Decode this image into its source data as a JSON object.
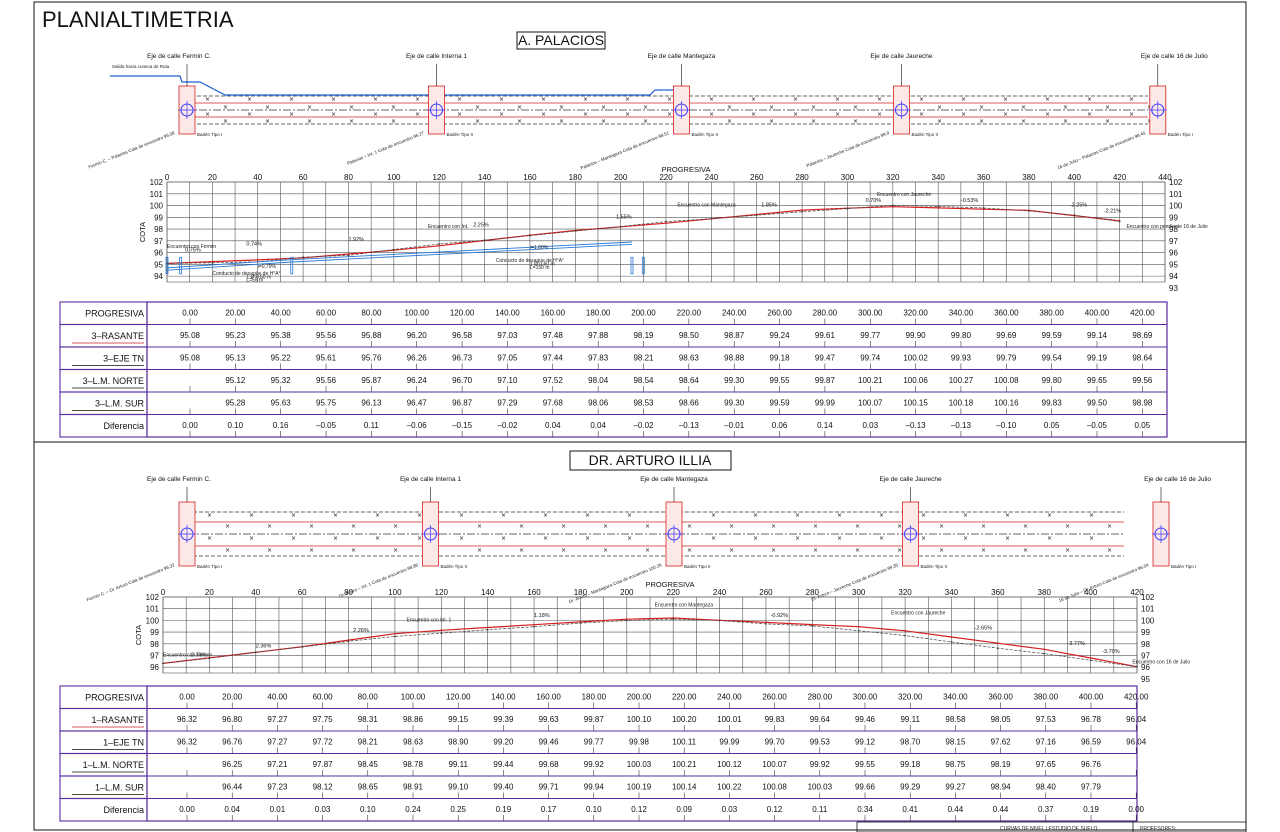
{
  "title": "PLANIALTIMETRIA",
  "footer": {
    "left_fragment": "CURVAS DE NIVEL / ESTUDIO DE SUELO",
    "right_fragment": "PROFESORES:"
  },
  "sections": [
    {
      "id": "palacios",
      "street_title": "A. PALACIOS",
      "intersections": [
        {
          "label": "Eje de calle Fermin C.",
          "prog": 0,
          "cota_label": "Fermin C. – Palacios  Cota de encuentro 95.08"
        },
        {
          "label": "Eje de calle Interna 1",
          "prog": 110,
          "cota_label": "Palacios – Int. 1  Cota de encuentro 96.27"
        },
        {
          "label": "Eje de calle Mantegaza",
          "prog": 218,
          "cota_label": "Palacios – Mantegaza  Cota de encuentro 98.51"
        },
        {
          "label": "Eje de calle Jaureche",
          "prog": 315,
          "cota_label": "Palacios – Jaureche  Cota de encuentro 99.9"
        },
        {
          "label": "Eje de calle 16 de Julio",
          "prog": 428,
          "cota_label": "16 de Julio – Palacios  Cota de encuentro 98.45"
        }
      ],
      "plan_notes": [
        "Salida hacia cuneca de Ruta",
        "Badén Tipo I",
        "Badén Tipo II",
        "Badén Tipo II",
        "Badén Tipo II",
        "Badén Tipo I"
      ],
      "chart_data": {
        "type": "line",
        "xlabel": "PROGRESIVA",
        "ylabel": "COTA",
        "x_ticks": [
          0,
          20,
          40,
          60,
          80,
          100,
          120,
          140,
          160,
          180,
          200,
          220,
          240,
          260,
          280,
          300,
          320,
          340,
          360,
          380,
          400,
          420,
          440
        ],
        "y_ticks": [
          94,
          95,
          96,
          97,
          98,
          99,
          100,
          101,
          102
        ],
        "y_ticks_right": [
          93,
          94,
          95,
          96,
          97,
          98,
          99,
          100,
          101,
          102
        ],
        "xlim": [
          0,
          440
        ],
        "ylim": [
          93.5,
          102
        ],
        "grid": true,
        "series": [
          {
            "name": "3-RASANTE",
            "color": "#d42020",
            "x": [
              0,
              20,
              40,
              60,
              80,
              100,
              120,
              140,
              160,
              180,
              200,
              220,
              240,
              260,
              280,
              300,
              320,
              340,
              360,
              380,
              400,
              420
            ],
            "y": [
              95.08,
              95.23,
              95.38,
              95.56,
              95.88,
              96.2,
              96.58,
              97.03,
              97.48,
              97.88,
              98.19,
              98.5,
              98.87,
              99.24,
              99.61,
              99.77,
              99.9,
              99.8,
              99.69,
              99.59,
              99.14,
              98.69
            ]
          },
          {
            "name": "3-EJE TN",
            "color": "#444444",
            "x": [
              0,
              20,
              40,
              60,
              80,
              100,
              120,
              140,
              160,
              180,
              200,
              220,
              240,
              260,
              280,
              300,
              320,
              340,
              360,
              380,
              400,
              420
            ],
            "y": [
              95.08,
              95.13,
              95.22,
              95.61,
              95.76,
              96.26,
              96.73,
              97.05,
              97.44,
              97.83,
              98.21,
              98.63,
              98.88,
              99.18,
              99.47,
              99.74,
              100.02,
              99.93,
              99.79,
              99.54,
              99.19,
              98.64
            ]
          }
        ],
        "slopes": [
          {
            "x": 8,
            "y": 96.1,
            "label": "0.75%"
          },
          {
            "x": 35,
            "y": 96.6,
            "label": "0.74%"
          },
          {
            "x": 80,
            "y": 97.0,
            "label": "1.92%"
          },
          {
            "x": 135,
            "y": 98.2,
            "label": "2.25%"
          },
          {
            "x": 198,
            "y": 98.9,
            "label": "1.55%"
          },
          {
            "x": 262,
            "y": 99.9,
            "label": "1.85%"
          },
          {
            "x": 308,
            "y": 100.3,
            "label": "0.70%"
          },
          {
            "x": 350,
            "y": 100.3,
            "label": "-0.53%"
          },
          {
            "x": 398,
            "y": 99.9,
            "label": "-2.25%"
          },
          {
            "x": 413,
            "y": 99.4,
            "label": "-2.21%"
          }
        ],
        "notes": [
          {
            "x": 0,
            "y": 96.4,
            "text": "Encuentro con Fermin"
          },
          {
            "x": 115,
            "y": 98.1,
            "text": "Encuentro con Int."
          },
          {
            "x": 225,
            "y": 99.9,
            "text": "Encuentro con Mantegaza"
          },
          {
            "x": 313,
            "y": 100.8,
            "text": "Encuentro con Jaureche"
          },
          {
            "x": 423,
            "y": 98.1,
            "text": "Encuentro con pendiente 16 de Julio"
          },
          {
            "x": 20,
            "y": 94.1,
            "text": "Conducto de desagüe de H°A°"
          },
          {
            "x": 35,
            "y": 93.8,
            "text": "1 Ø 0,60 m"
          },
          {
            "x": 35,
            "y": 93.55,
            "text": "L=55 m"
          },
          {
            "x": 40,
            "y": 94.7,
            "text": "i=0,79%"
          },
          {
            "x": 145,
            "y": 95.2,
            "text": "Conducto de desagüe de H°A°"
          },
          {
            "x": 160,
            "y": 94.9,
            "text": "1 Ø 0,60 m"
          },
          {
            "x": 160,
            "y": 94.6,
            "text": "L=150 m"
          },
          {
            "x": 160,
            "y": 96.3,
            "text": "i=1,00%"
          }
        ]
      },
      "table": {
        "rows": [
          {
            "label": "PROGRESIVA",
            "values": [
              "0.00",
              "20.00",
              "40.00",
              "60.00",
              "80.00",
              "100.00",
              "120.00",
              "140.00",
              "160.00",
              "180.00",
              "200.00",
              "220.00",
              "240.00",
              "260.00",
              "280.00",
              "300.00",
              "320.00",
              "340.00",
              "360.00",
              "380.00",
              "400.00",
              "420.00"
            ]
          },
          {
            "label": "3–RASANTE",
            "values": [
              "95.08",
              "95.23",
              "95.38",
              "95.56",
              "95.88",
              "96.20",
              "96.58",
              "97.03",
              "97.48",
              "97.88",
              "98.19",
              "98.50",
              "98.87",
              "99.24",
              "99.61",
              "99.77",
              "99.90",
              "99.80",
              "99.69",
              "99.59",
              "99.14",
              "98.69"
            ]
          },
          {
            "label": "3–EJE TN",
            "values": [
              "95.08",
              "95.13",
              "95.22",
              "95.61",
              "95.76",
              "96.26",
              "96.73",
              "97.05",
              "97.44",
              "97.83",
              "98.21",
              "98.63",
              "98.88",
              "99.18",
              "99.47",
              "99.74",
              "100.02",
              "99.93",
              "99.79",
              "99.54",
              "99.19",
              "98.64"
            ]
          },
          {
            "label": "3–L.M. NORTE",
            "values": [
              "",
              "95.12",
              "95.32",
              "95.56",
              "95.87",
              "96.24",
              "96.70",
              "97.10",
              "97.52",
              "98.04",
              "98.54",
              "98.64",
              "99.30",
              "99.55",
              "99.87",
              "100.21",
              "100.06",
              "100.27",
              "100.08",
              "99.80",
              "99.65",
              "99.56"
            ]
          },
          {
            "label": "3–L.M. SUR",
            "values": [
              "",
              "95.28",
              "95.63",
              "95.75",
              "96.13",
              "96.47",
              "96.87",
              "97.29",
              "97.68",
              "98.06",
              "98.53",
              "98.66",
              "99.30",
              "99.59",
              "99.99",
              "100.07",
              "100.15",
              "100.18",
              "100.16",
              "99.83",
              "99.50",
              "98.98"
            ]
          },
          {
            "label": "Diferencia",
            "values": [
              "0.00",
              "0.10",
              "0.16",
              "–0.05",
              "0.11",
              "–0.06",
              "–0.15",
              "–0.02",
              "0.04",
              "0.04",
              "–0.02",
              "–0.13",
              "–0.01",
              "0.06",
              "0.14",
              "0.03",
              "–0.13",
              "–0.13",
              "–0.10",
              "0.05",
              "–0.05",
              "0.05"
            ]
          }
        ]
      }
    },
    {
      "id": "illia",
      "street_title": "DR. ARTURO ILLIA",
      "intersections": [
        {
          "label": "Eje de calle Fermin C.",
          "prog": 0,
          "cota_label": "Fermin C. – Dr. Arturo  Cota de encuentro 96.32"
        },
        {
          "label": "Eje de calle Interna 1",
          "prog": 105,
          "cota_label": "Dr. Arturo – Int. 1  Cota de encuentro 98.86"
        },
        {
          "label": "Eje de calle Mantegaza",
          "prog": 210,
          "cota_label": "Dr. Arturo – Mantegaza  Cota de encuentro 100.26"
        },
        {
          "label": "Eje de calle Jaureche",
          "prog": 312,
          "cota_label": "Dr. Arturo – Jaureche  Cota de encuentro 99.35"
        },
        {
          "label": "Eje de calle 16 de Julio",
          "prog": 420,
          "cota_label": "16 de Julio – Dr. Arturo  Cota de encuentro 96.04"
        }
      ],
      "plan_notes": [
        "Badén Tipo I",
        "Badén Tipo II",
        "Badén Tipo II",
        "Badén Tipo II",
        "Badén Tipo I"
      ],
      "chart_data": {
        "type": "line",
        "xlabel": "PROGRESIVA",
        "ylabel": "COTA",
        "x_ticks": [
          0,
          20,
          40,
          60,
          80,
          100,
          120,
          140,
          160,
          180,
          200,
          220,
          240,
          260,
          280,
          300,
          320,
          340,
          360,
          380,
          400,
          420
        ],
        "y_ticks": [
          96,
          97,
          98,
          99,
          100,
          101,
          102
        ],
        "y_ticks_right": [
          95,
          96,
          97,
          98,
          99,
          100,
          101,
          102
        ],
        "xlim": [
          0,
          420
        ],
        "ylim": [
          95.5,
          102
        ],
        "grid": true,
        "series": [
          {
            "name": "1-RASANTE",
            "color": "#d42020",
            "x": [
              0,
              20,
              40,
              60,
              80,
              100,
              120,
              140,
              160,
              180,
              200,
              220,
              240,
              260,
              280,
              300,
              320,
              340,
              360,
              380,
              400,
              420
            ],
            "y": [
              96.32,
              96.8,
              97.27,
              97.75,
              98.31,
              98.86,
              99.15,
              99.39,
              99.63,
              99.87,
              100.1,
              100.2,
              100.01,
              99.83,
              99.64,
              99.46,
              99.11,
              98.58,
              98.05,
              97.53,
              96.78,
              96.04
            ]
          },
          {
            "name": "1-EJE TN",
            "color": "#444444",
            "x": [
              0,
              20,
              40,
              60,
              80,
              100,
              120,
              140,
              160,
              180,
              200,
              220,
              240,
              260,
              280,
              300,
              320,
              340,
              360,
              380,
              400,
              420
            ],
            "y": [
              96.32,
              96.76,
              97.27,
              97.72,
              98.21,
              98.63,
              98.9,
              99.2,
              99.46,
              99.77,
              99.98,
              100.11,
              99.99,
              99.7,
              99.53,
              99.12,
              98.7,
              98.15,
              97.62,
              97.16,
              96.59,
              96.04
            ]
          }
        ],
        "slopes": [
          {
            "x": 12,
            "y": 96.9,
            "label": "2.10%"
          },
          {
            "x": 40,
            "y": 97.7,
            "label": "2.36%"
          },
          {
            "x": 82,
            "y": 99.0,
            "label": "2.26%"
          },
          {
            "x": 160,
            "y": 100.3,
            "label": "1.18%"
          },
          {
            "x": 262,
            "y": 100.3,
            "label": "-0.92%"
          },
          {
            "x": 350,
            "y": 99.2,
            "label": "-2.65%"
          },
          {
            "x": 390,
            "y": 97.9,
            "label": "-3.77%"
          },
          {
            "x": 405,
            "y": 97.2,
            "label": "-3.70%"
          }
        ],
        "notes": [
          {
            "x": 0,
            "y": 96.9,
            "text": "Encuentro con Fermin"
          },
          {
            "x": 105,
            "y": 99.9,
            "text": "Encuentro con Int. 1"
          },
          {
            "x": 212,
            "y": 101.2,
            "text": "Encuentro con Mantegaza"
          },
          {
            "x": 314,
            "y": 100.5,
            "text": "Encuentro con Jaureche"
          },
          {
            "x": 418,
            "y": 96.3,
            "text": "Encuentro con 16 de Julio"
          }
        ]
      },
      "table": {
        "rows": [
          {
            "label": "PROGRESIVA",
            "values": [
              "0.00",
              "20.00",
              "40.00",
              "60.00",
              "80.00",
              "100.00",
              "120.00",
              "140.00",
              "160.00",
              "180.00",
              "200.00",
              "220.00",
              "240.00",
              "260.00",
              "280.00",
              "300.00",
              "320.00",
              "340.00",
              "360.00",
              "380.00",
              "400.00",
              "420.00"
            ]
          },
          {
            "label": "1–RASANTE",
            "values": [
              "96.32",
              "96.80",
              "97.27",
              "97.75",
              "98.31",
              "98.86",
              "99.15",
              "99.39",
              "99.63",
              "99.87",
              "100.10",
              "100.20",
              "100.01",
              "99.83",
              "99.64",
              "99.46",
              "99.11",
              "98.58",
              "98.05",
              "97.53",
              "96.78",
              "96.04"
            ]
          },
          {
            "label": "1–EJE TN",
            "values": [
              "96.32",
              "96.76",
              "97.27",
              "97.72",
              "98.21",
              "98.63",
              "98.90",
              "99.20",
              "99.46",
              "99.77",
              "99.98",
              "100.11",
              "99.99",
              "99.70",
              "99.53",
              "99.12",
              "98.70",
              "98.15",
              "97.62",
              "97.16",
              "96.59",
              "96.04"
            ]
          },
          {
            "label": "1–L.M. NORTE",
            "values": [
              "",
              "96.25",
              "97.21",
              "97.87",
              "98.45",
              "98.78",
              "99.11",
              "99.44",
              "99.68",
              "99.92",
              "100.03",
              "100.21",
              "100.12",
              "100.07",
              "99.92",
              "99.55",
              "99.18",
              "98.75",
              "98.19",
              "97.65",
              "96.76",
              ""
            ]
          },
          {
            "label": "1–L.M. SUR",
            "values": [
              "",
              "96.44",
              "97.23",
              "98.12",
              "98.65",
              "98.91",
              "99.10",
              "99.40",
              "99.71",
              "99.94",
              "100.19",
              "100.14",
              "100.22",
              "100.08",
              "100.03",
              "99.66",
              "99.29",
              "99.27",
              "98.94",
              "98.40",
              "97.79",
              ""
            ]
          },
          {
            "label": "Diferencia",
            "values": [
              "0.00",
              "0.04",
              "0.01",
              "0.03",
              "0.10",
              "0.24",
              "0.25",
              "0.19",
              "0.17",
              "0.10",
              "0.12",
              "0.09",
              "0.03",
              "0.12",
              "0.11",
              "0.34",
              "0.41",
              "0.44",
              "0.44",
              "0.37",
              "0.19",
              "0.00"
            ]
          }
        ]
      }
    }
  ]
}
